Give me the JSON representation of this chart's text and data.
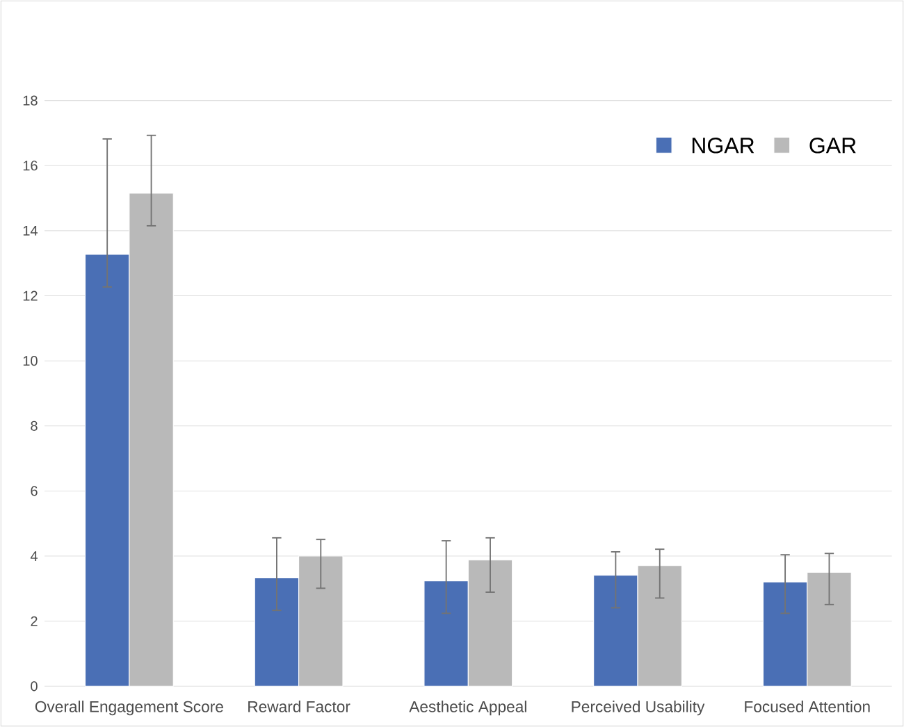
{
  "chart_data": {
    "type": "bar",
    "categories": [
      "Overall Engagement Score",
      "Reward Factor",
      "Aesthetic Appeal",
      "Perceived Usability",
      "Focused Attention"
    ],
    "series": [
      {
        "name": "NGAR",
        "color": "#4a6fb5",
        "values": [
          13.27,
          3.33,
          3.24,
          3.41,
          3.2
        ],
        "errors": [
          [
            12.27,
            16.82
          ],
          [
            2.33,
            4.56
          ],
          [
            2.24,
            4.47
          ],
          [
            2.41,
            4.13
          ],
          [
            2.24,
            4.04
          ]
        ]
      },
      {
        "name": "GAR",
        "color": "#b9b9b9",
        "values": [
          15.15,
          4.0,
          3.88,
          3.71,
          3.5
        ],
        "errors": [
          [
            14.15,
            16.93
          ],
          [
            3.01,
            4.51
          ],
          [
            2.89,
            4.56
          ],
          [
            2.71,
            4.21
          ],
          [
            2.51,
            4.08
          ]
        ]
      }
    ],
    "ylim": [
      0,
      18
    ],
    "yticks": [
      0,
      2,
      4,
      6,
      8,
      10,
      12,
      14,
      16,
      18
    ],
    "grid": "y",
    "legend": "top right"
  }
}
